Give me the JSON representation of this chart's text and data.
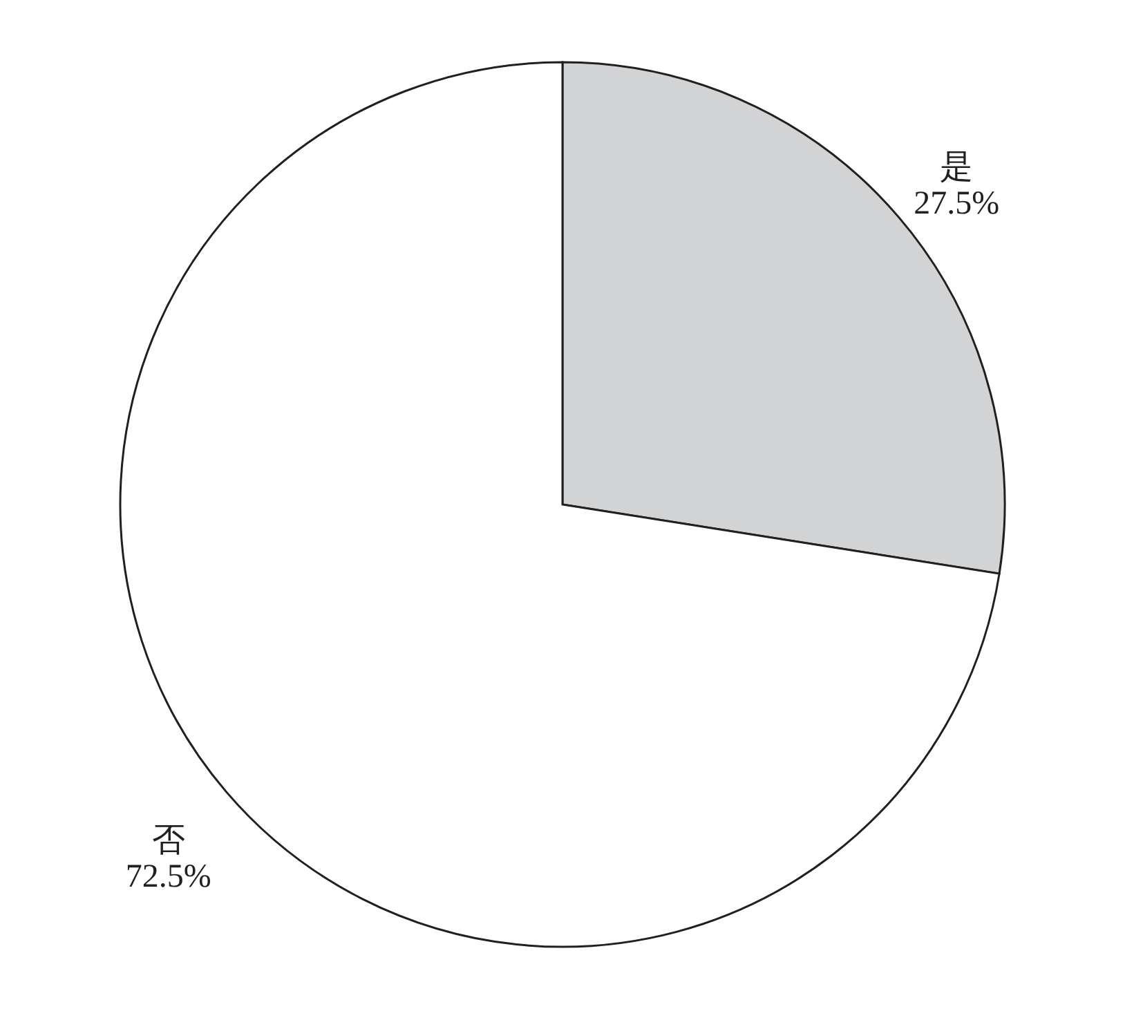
{
  "chart_data": {
    "type": "pie",
    "categories": [
      "是",
      "否"
    ],
    "values": [
      27.5,
      72.5
    ],
    "colors": [
      "#d1d3d4",
      "#ffffff"
    ],
    "value_labels": [
      "27.5%",
      "72.5%"
    ]
  }
}
